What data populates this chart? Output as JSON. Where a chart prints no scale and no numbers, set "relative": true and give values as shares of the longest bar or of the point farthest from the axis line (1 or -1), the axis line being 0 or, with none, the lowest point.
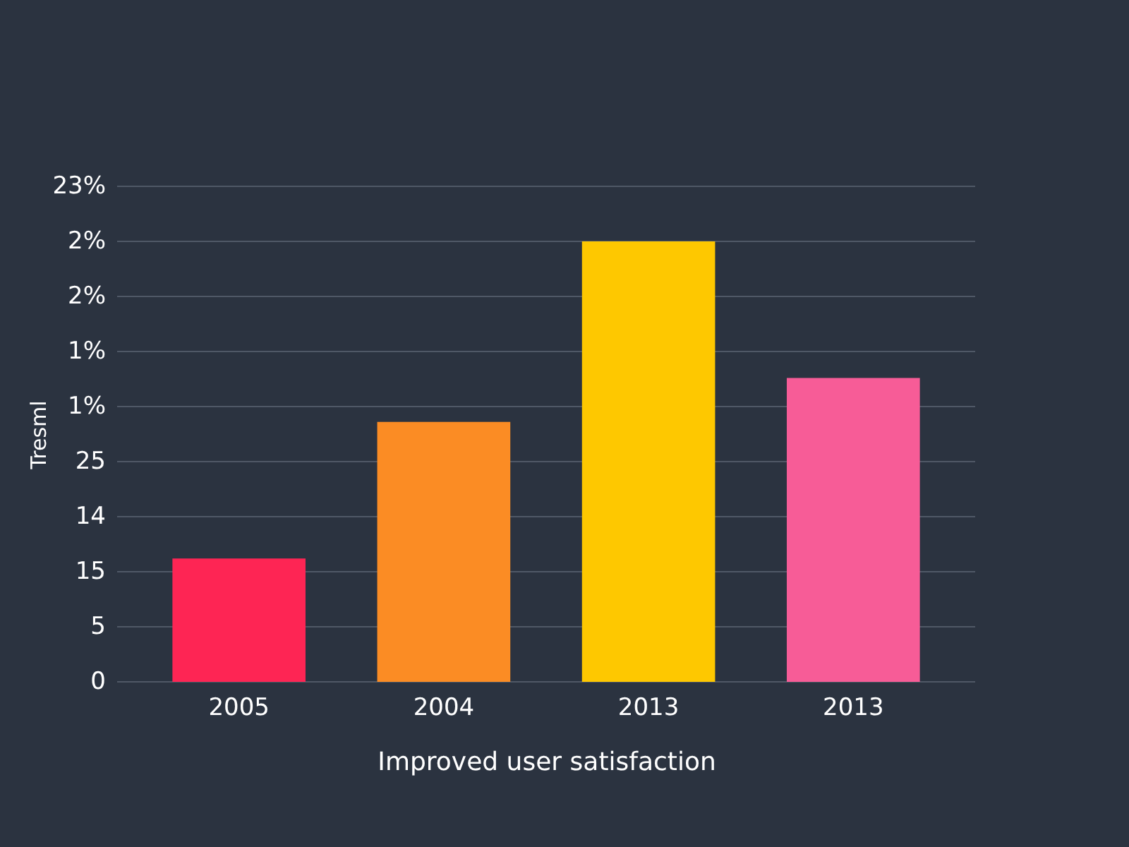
{
  "chart_data": {
    "type": "bar",
    "xlabel": "Improved user satisfaction",
    "ylabel": "Tresml",
    "categories": [
      "2005",
      "2004",
      "2013",
      "2013"
    ],
    "values": [
      0.28,
      0.59,
      1,
      0.69
    ],
    "colors": [
      "#fe2554",
      "#fb8c24",
      "#fec800",
      "#f75c97"
    ],
    "relative": true,
    "annotations": [
      "0",
      "5",
      "15",
      "14",
      "25",
      "1%",
      "1%",
      "2%",
      "2%",
      "23%"
    ],
    "grid": "y"
  }
}
